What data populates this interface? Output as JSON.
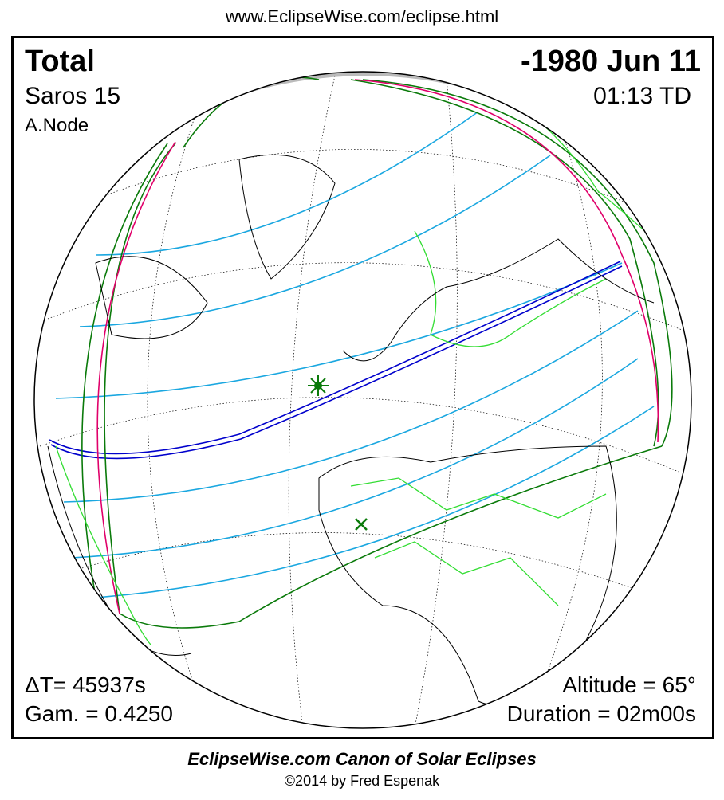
{
  "header_url": "www.EclipseWise.com/eclipse.html",
  "eclipse": {
    "type": "Total",
    "date": "-1980 Jun 11",
    "saros": "Saros  15",
    "time": "01:13 TD",
    "node": "A.Node",
    "delta_t": "ΔT=  45937s",
    "gamma": "Gam. = 0.4250",
    "altitude": "Altitude = 65°",
    "duration": "Duration = 02m00s"
  },
  "footer": {
    "canon": "EclipseWise.com Canon of Solar Eclipses",
    "copyright": "©2014 by Fred Espenak"
  },
  "colors": {
    "central_path": "#0000cc",
    "partial_lines": "#00a0e0",
    "penumbra_limits": "#007a00",
    "rise_set": "#e0006a",
    "borders": "#33dd33",
    "night": "#bbbbbb"
  }
}
